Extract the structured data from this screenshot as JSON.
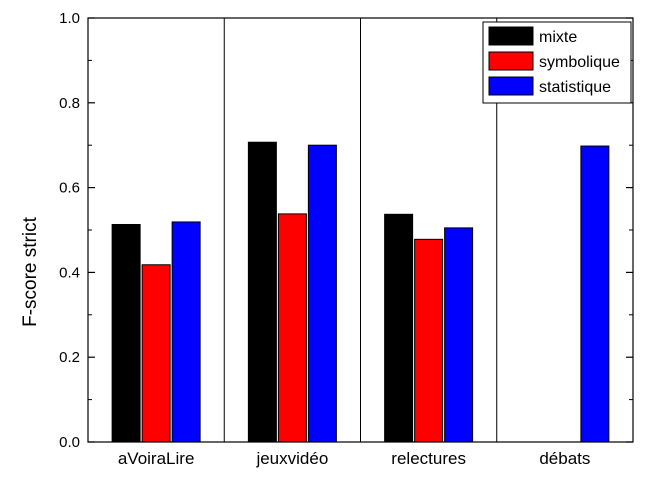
{
  "chart_data": {
    "type": "bar",
    "categories": [
      "aVoiraLire",
      "jeuxvidéo",
      "relectures",
      "débats"
    ],
    "series": [
      {
        "name": "mixte",
        "color": "#000000",
        "values": [
          0.513,
          0.707,
          0.537,
          null
        ]
      },
      {
        "name": "symbolique",
        "color": "#ff0000",
        "values": [
          0.418,
          0.538,
          0.478,
          null
        ]
      },
      {
        "name": "statistique",
        "color": "#0000ff",
        "values": [
          0.519,
          0.7,
          0.505,
          0.698
        ]
      }
    ],
    "title": "",
    "xlabel": "",
    "ylabel": "F-score strict",
    "ylim": [
      0,
      1.0
    ],
    "yticks": [
      "0.0",
      "0.2",
      "0.4",
      "0.6",
      "0.8",
      "1.0"
    ],
    "grid": false,
    "category_separators": true,
    "legend_position": "top-right"
  }
}
